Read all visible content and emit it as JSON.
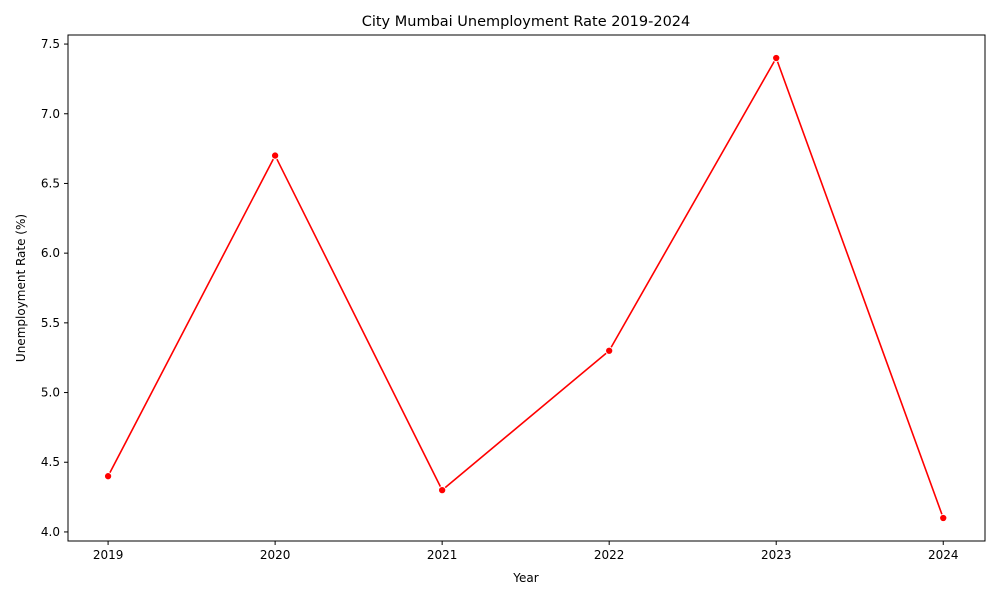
{
  "chart_data": {
    "type": "line",
    "title": "City Mumbai Unemployment Rate 2019-2024",
    "xlabel": "Year",
    "ylabel": "Unemployment Rate (%)",
    "x": [
      2019,
      2020,
      2021,
      2022,
      2023,
      2024
    ],
    "x_tick_labels": [
      "2019",
      "2020",
      "2021",
      "2022",
      "2023",
      "2024"
    ],
    "y_ticks": [
      4.0,
      4.5,
      5.0,
      5.5,
      6.0,
      6.5,
      7.0,
      7.5
    ],
    "y_tick_labels": [
      "4.0",
      "4.5",
      "5.0",
      "5.5",
      "6.0",
      "6.5",
      "7.0",
      "7.5"
    ],
    "xlim": [
      2018.76,
      2024.25
    ],
    "ylim": [
      3.935,
      7.565
    ],
    "series": [
      {
        "values": [
          4.4,
          6.7,
          4.3,
          5.3,
          7.4,
          4.1
        ],
        "color": "#ff0000",
        "marker": "circle"
      }
    ],
    "grid": false,
    "legend": "none"
  }
}
